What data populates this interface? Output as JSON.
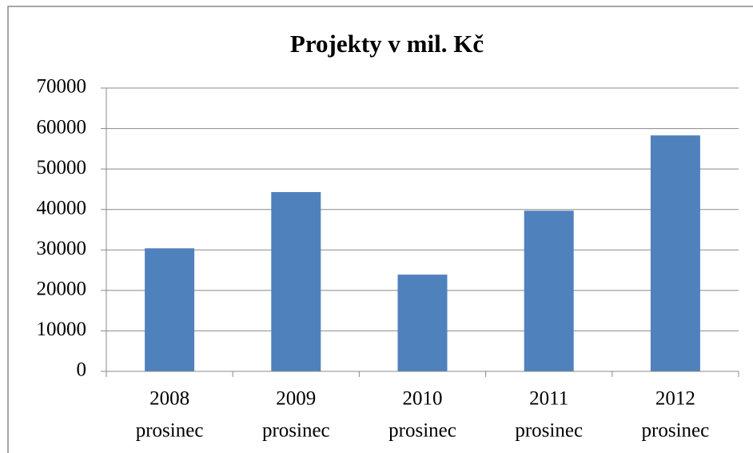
{
  "chart_data": {
    "type": "bar",
    "title": "Projekty v mil. Kč",
    "categories": [
      [
        "2008",
        "prosinec"
      ],
      [
        "2009",
        "prosinec"
      ],
      [
        "2010",
        "prosinec"
      ],
      [
        "2011",
        "prosinec"
      ],
      [
        "2012",
        "prosinec"
      ]
    ],
    "values": [
      30400,
      44300,
      23900,
      39700,
      58300
    ],
    "color": "#4f81bd",
    "ylim": [
      0,
      70000
    ],
    "yticks": [
      0,
      10000,
      20000,
      30000,
      40000,
      50000,
      60000,
      70000
    ],
    "grid": true
  }
}
